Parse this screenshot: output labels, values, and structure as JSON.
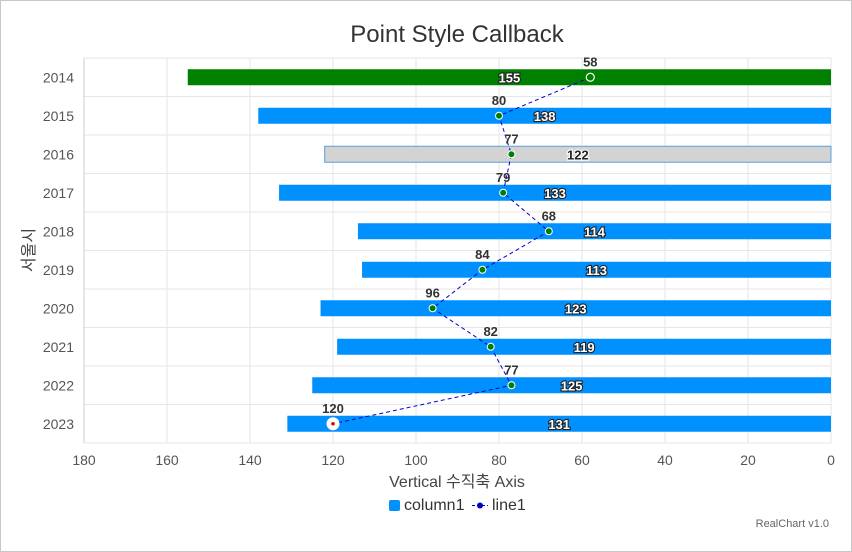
{
  "chart_data": {
    "type": "bar",
    "orientation": "horizontal",
    "title": "Point Style Callback",
    "categories": [
      "2014",
      "2015",
      "2016",
      "2017",
      "2018",
      "2019",
      "2020",
      "2021",
      "2022",
      "2023"
    ],
    "series": [
      {
        "name": "column1",
        "type": "bar",
        "color": "#0091ff",
        "values": [
          155,
          138,
          122,
          133,
          114,
          113,
          123,
          119,
          125,
          131
        ],
        "point_colors": {
          "2014": "#008000",
          "2016": "#d3d3d3"
        }
      },
      {
        "name": "line1",
        "type": "line",
        "color": "#0000cc",
        "line_style": "dashed",
        "values": [
          58,
          80,
          77,
          79,
          68,
          84,
          96,
          82,
          77,
          120
        ]
      }
    ],
    "xlabel": "Vertical 수직축 Axis",
    "ylabel": "서울시",
    "xlim": [
      0,
      180
    ],
    "x_reversed": true,
    "x_ticks": [
      180,
      160,
      140,
      120,
      100,
      80,
      60,
      40,
      20,
      0
    ],
    "legend": {
      "position": "bottom",
      "items": [
        "column1",
        "line1"
      ]
    },
    "credit": "RealChart v1.0",
    "grid": true
  }
}
